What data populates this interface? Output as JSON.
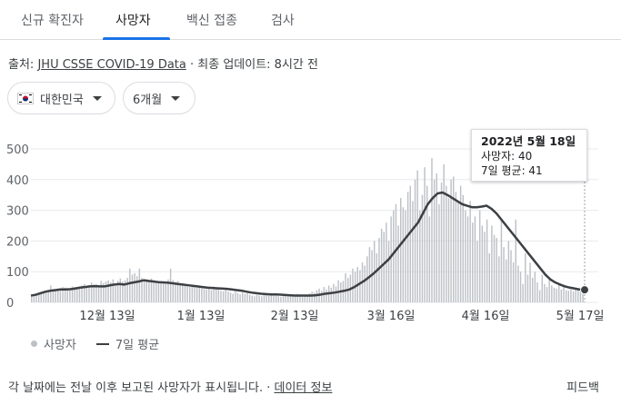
{
  "tabs": [
    {
      "label": "신규 확진자"
    },
    {
      "label": "사망자",
      "active": true
    },
    {
      "label": "백신 접종"
    },
    {
      "label": "검사"
    }
  ],
  "source": {
    "prefix": "출처:",
    "link": "JHU CSSE COVID-19 Data",
    "suffix": "· 최종 업데이트: 8시간 전"
  },
  "filters": {
    "region": "대한민국",
    "period": "6개월"
  },
  "tooltip": {
    "date": "2022년 5월 18일",
    "deaths": "사망자: 40",
    "avg": "7일 평균: 41"
  },
  "legend": {
    "deaths": "사망자",
    "avg": "7일 평균"
  },
  "footer": {
    "note": "각 날짜에는 전날 이후 보고된 사망자가 표시됩니다. ·",
    "link": "데이터 정보",
    "feedback": "피드백"
  },
  "colors": {
    "bar": "#bdc1c6",
    "line": "#3c4043",
    "accent": "#1a73e8"
  },
  "chart_data": {
    "type": "bar",
    "x_tick_labels": [
      "12월 13일",
      "1월 13일",
      "2월 13일",
      "3월 16일",
      "4월 16일",
      "5월 17일"
    ],
    "y_ticks": [
      0,
      100,
      200,
      300,
      400,
      500
    ],
    "ylim": [
      0,
      500
    ],
    "series": [
      {
        "name": "사망자",
        "type": "bar",
        "values": [
          20,
          22,
          25,
          28,
          30,
          32,
          35,
          38,
          55,
          40,
          42,
          45,
          38,
          50,
          48,
          46,
          44,
          52,
          50,
          48,
          47,
          55,
          60,
          50,
          55,
          65,
          58,
          60,
          52,
          70,
          63,
          68,
          72,
          65,
          75,
          60,
          70,
          78,
          68,
          72,
          80,
          110,
          90,
          95,
          85,
          110,
          80,
          70,
          75,
          68,
          78,
          72,
          65,
          70,
          62,
          68,
          60,
          75,
          110,
          72,
          66,
          70,
          60,
          62,
          58,
          55,
          50,
          52,
          55,
          48,
          50,
          46,
          44,
          42,
          48,
          40,
          52,
          45,
          42,
          38,
          36,
          40,
          35,
          32,
          28,
          35,
          30,
          26,
          32,
          28,
          30,
          25,
          22,
          20,
          24,
          22,
          20,
          25,
          28,
          22,
          26,
          24,
          22,
          20,
          18,
          22,
          24,
          20,
          26,
          22,
          24,
          28,
          20,
          18,
          22,
          25,
          30,
          35,
          32,
          40,
          45,
          38,
          50,
          42,
          55,
          48,
          60,
          52,
          72,
          65,
          70,
          95,
          80,
          90,
          110,
          100,
          115,
          105,
          130,
          120,
          150,
          180,
          170,
          200,
          160,
          210,
          240,
          230,
          260,
          200,
          280,
          300,
          320,
          250,
          340,
          310,
          300,
          360,
          380,
          330,
          400,
          430,
          300,
          350,
          440,
          380,
          280,
          470,
          400,
          420,
          320,
          390,
          450,
          380,
          340,
          400,
          410,
          360,
          330,
          380,
          350,
          300,
          280,
          330,
          260,
          280,
          200,
          300,
          250,
          230,
          270,
          160,
          250,
          220,
          210,
          150,
          270,
          180,
          140,
          200,
          170,
          130,
          270,
          120,
          100,
          60,
          160,
          90,
          130,
          80,
          100,
          65,
          40,
          90,
          60,
          50,
          75,
          55,
          48,
          45,
          60,
          42,
          50,
          40,
          38,
          42,
          36,
          45,
          40,
          38,
          40
        ]
      },
      {
        "name": "7일 평균",
        "type": "line",
        "values": [
          22,
          25,
          30,
          35,
          38,
          40,
          42,
          42,
          43,
          45,
          48,
          50,
          52,
          53,
          52,
          52,
          55,
          58,
          60,
          58,
          62,
          65,
          68,
          72,
          70,
          68,
          66,
          65,
          64,
          62,
          60,
          58,
          56,
          54,
          52,
          50,
          48,
          47,
          46,
          45,
          44,
          42,
          40,
          38,
          35,
          32,
          30,
          28,
          27,
          26,
          26,
          25,
          24,
          23,
          22,
          22,
          22,
          22,
          23,
          25,
          28,
          30,
          32,
          35,
          38,
          42,
          50,
          60,
          70,
          82,
          95,
          110,
          125,
          140,
          160,
          180,
          200,
          220,
          240,
          260,
          290,
          320,
          340,
          355,
          358,
          350,
          340,
          330,
          320,
          315,
          310,
          310,
          312,
          315,
          305,
          290,
          270,
          250,
          230,
          210,
          190,
          170,
          150,
          130,
          110,
          90,
          75,
          65,
          58,
          52,
          48,
          45,
          42,
          41
        ]
      }
    ]
  }
}
